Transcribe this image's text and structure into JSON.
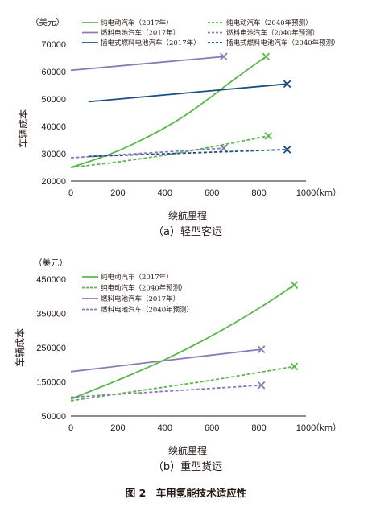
{
  "figure_caption": "图 2　车用氢能技术适应性",
  "chart_data": [
    {
      "type": "line",
      "caption": "（a）轻型客运",
      "y_unit": "（美元）",
      "ylabel": "车辆成本",
      "xlabel": "续航里程",
      "x_unit": "（km）",
      "xlim": [
        0,
        1000
      ],
      "ylim": [
        20000,
        70000
      ],
      "xticks": [
        0,
        200,
        400,
        600,
        800,
        1000
      ],
      "yticks": [
        20000,
        30000,
        40000,
        50000,
        60000,
        70000
      ],
      "grid": false,
      "legend_position": "top",
      "series": [
        {
          "name": "纯电动汽车（2017年）",
          "color": "#56b947",
          "style": "solid",
          "x": [
            0,
            100,
            200,
            300,
            400,
            500,
            600,
            700,
            830
          ],
          "y": [
            25000,
            27800,
            31000,
            35000,
            39500,
            44800,
            51000,
            57500,
            65500
          ]
        },
        {
          "name": "纯电动汽车（2040年预测）",
          "color": "#56b947",
          "style": "dashed",
          "x": [
            0,
            200,
            400,
            600,
            840
          ],
          "y": [
            25000,
            27000,
            29500,
            32500,
            36500
          ]
        },
        {
          "name": "燃料电池汽车（2017年）",
          "color": "#8a7bb5",
          "style": "solid",
          "x": [
            0,
            650
          ],
          "y": [
            60500,
            65500
          ]
        },
        {
          "name": "燃料电池汽车（2040年预测）",
          "color": "#8a7bb5",
          "style": "dashed",
          "x": [
            0,
            650
          ],
          "y": [
            28500,
            32000
          ]
        },
        {
          "name": "插电式燃料电池汽车（2017年）",
          "color": "#1a4e80",
          "style": "solid",
          "x": [
            75,
            920
          ],
          "y": [
            49000,
            55500
          ]
        },
        {
          "name": "插电式燃料电池汽车（2040年预测）",
          "color": "#1a4e80",
          "style": "dashed",
          "x": [
            75,
            920
          ],
          "y": [
            29000,
            31500
          ]
        }
      ]
    },
    {
      "type": "line",
      "caption": "（b）重型货运",
      "y_unit": "（美元）",
      "ylabel": "车辆成本",
      "xlabel": "续航里程",
      "x_unit": "（km）",
      "xlim": [
        0,
        1000
      ],
      "ylim": [
        50000,
        450000
      ],
      "xticks": [
        0,
        200,
        400,
        600,
        800,
        1000
      ],
      "yticks": [
        50000,
        150000,
        250000,
        350000,
        450000
      ],
      "grid": false,
      "legend_position": "top-left",
      "series": [
        {
          "name": "纯电动汽车（2017年）",
          "color": "#56b947",
          "style": "solid",
          "x": [
            0,
            200,
            400,
            600,
            800,
            950
          ],
          "y": [
            100000,
            155000,
            215000,
            285000,
            365000,
            433000
          ]
        },
        {
          "name": "纯电动汽车（2040年预测）",
          "color": "#56b947",
          "style": "dashed",
          "x": [
            0,
            300,
            600,
            950
          ],
          "y": [
            95000,
            125000,
            155000,
            195000
          ]
        },
        {
          "name": "燃料电池汽车（2017年）",
          "color": "#8a7bb5",
          "style": "solid",
          "x": [
            0,
            810
          ],
          "y": [
            180000,
            245000
          ]
        },
        {
          "name": "燃料电池汽车（2040年预测）",
          "color": "#8a7bb5",
          "style": "dashed",
          "x": [
            0,
            810
          ],
          "y": [
            105000,
            140000
          ]
        }
      ]
    }
  ]
}
